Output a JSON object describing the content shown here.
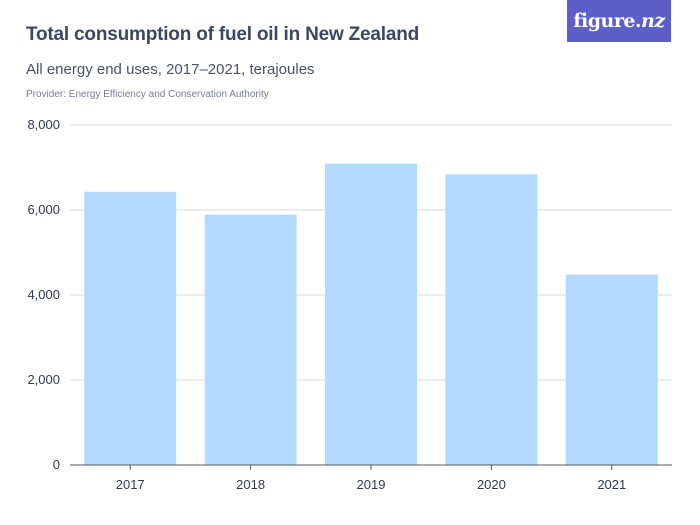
{
  "header": {
    "title": "Total consumption of fuel oil in New Zealand",
    "subtitle": "All energy end uses, 2017–2021, terajoules",
    "provider": "Provider: Energy Efficiency and Conservation Authority"
  },
  "logo": {
    "text_main": "figure.",
    "text_accent": "nz"
  },
  "colors": {
    "bar": "#b3dafc",
    "grid": "#d9d9d9",
    "axis": "#555555",
    "logo_bg": "#5b5fc7"
  },
  "chart_data": {
    "type": "bar",
    "categories": [
      "2017",
      "2018",
      "2019",
      "2020",
      "2021"
    ],
    "values": [
      6430,
      5890,
      7090,
      6840,
      4480
    ],
    "ylim": [
      0,
      8000
    ],
    "yticks": [
      0,
      2000,
      4000,
      6000,
      8000
    ],
    "ytick_labels": [
      "0",
      "2,000",
      "4,000",
      "6,000",
      "8,000"
    ],
    "grid": true
  }
}
